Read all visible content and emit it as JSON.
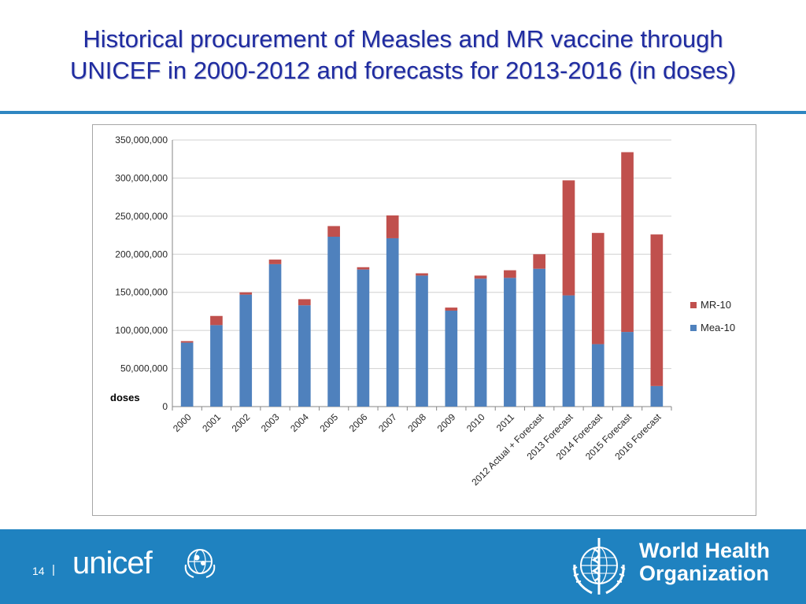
{
  "slide": {
    "title_line1": "Historical procurement of Measles and MR vaccine through",
    "title_line2": "UNICEF in 2000-2012 and forecasts for 2013-2016 (in doses)",
    "page_number": "14",
    "separator": "|"
  },
  "logos": {
    "unicef_text": "unicef",
    "who_line1": "World Health",
    "who_line2": "Organization"
  },
  "colors": {
    "title": "#1f2ba0",
    "rule": "#2e86c1",
    "footer": "#1f82c0",
    "mea10": "#4f81bd",
    "mr10": "#c0504d"
  },
  "chart_data": {
    "type": "bar",
    "stacked": true,
    "categories": [
      "2000",
      "2001",
      "2002",
      "2003",
      "2004",
      "2005",
      "2006",
      "2007",
      "2008",
      "2009",
      "2010",
      "2011",
      "2012 Actual + Forecast",
      "2013 Forecast",
      "2014 Forecast",
      "2015 Forecast",
      "2016 Forecast"
    ],
    "series": [
      {
        "name": "Mea-10",
        "values": [
          84000000,
          107000000,
          147000000,
          187000000,
          133000000,
          223000000,
          180000000,
          221000000,
          172000000,
          126000000,
          168000000,
          169000000,
          181000000,
          146000000,
          82000000,
          98000000,
          27000000
        ]
      },
      {
        "name": "MR-10",
        "values": [
          2000000,
          12000000,
          3000000,
          6000000,
          8000000,
          14000000,
          3000000,
          30000000,
          3000000,
          4000000,
          4000000,
          10000000,
          19000000,
          151000000,
          146000000,
          236000000,
          199000000
        ]
      }
    ],
    "ylabel": "doses",
    "ylim": [
      0,
      350000000
    ],
    "yticks": [
      0,
      50000000,
      100000000,
      150000000,
      200000000,
      250000000,
      300000000,
      350000000
    ],
    "ytick_labels": [
      "0",
      "50,000,000",
      "100,000,000",
      "150,000,000",
      "200,000,000",
      "250,000,000",
      "300,000,000",
      "350,000,000"
    ],
    "legend": {
      "placement": "right",
      "entries": [
        "MR-10",
        "Mea-10"
      ]
    },
    "grid": true
  }
}
